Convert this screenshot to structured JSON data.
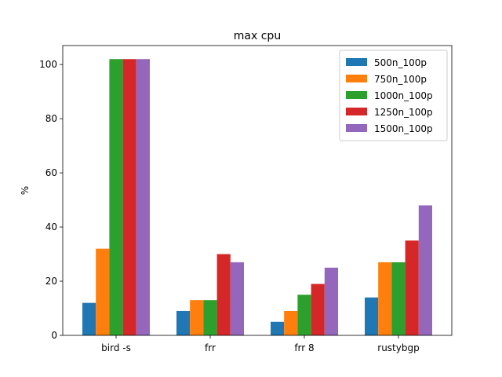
{
  "chart_data": {
    "type": "bar",
    "title": "max cpu",
    "xlabel": "",
    "ylabel": "%",
    "categories": [
      "bird -s",
      "frr",
      "frr 8",
      "rustybgp"
    ],
    "ylim": [
      0,
      107
    ],
    "yticks": [
      0,
      20,
      40,
      60,
      80,
      100
    ],
    "grid": false,
    "legend_position": "top-right",
    "series": [
      {
        "name": "500n_100p",
        "color": "#1f77b4",
        "values": [
          12,
          9,
          5,
          14
        ]
      },
      {
        "name": "750n_100p",
        "color": "#ff7f0e",
        "values": [
          32,
          13,
          9,
          27
        ]
      },
      {
        "name": "1000n_100p",
        "color": "#2ca02c",
        "values": [
          102,
          13,
          15,
          27
        ]
      },
      {
        "name": "1250n_100p",
        "color": "#d62728",
        "values": [
          102,
          30,
          19,
          35
        ]
      },
      {
        "name": "1500n_100p",
        "color": "#9467bd",
        "values": [
          102,
          27,
          25,
          48
        ]
      }
    ]
  }
}
